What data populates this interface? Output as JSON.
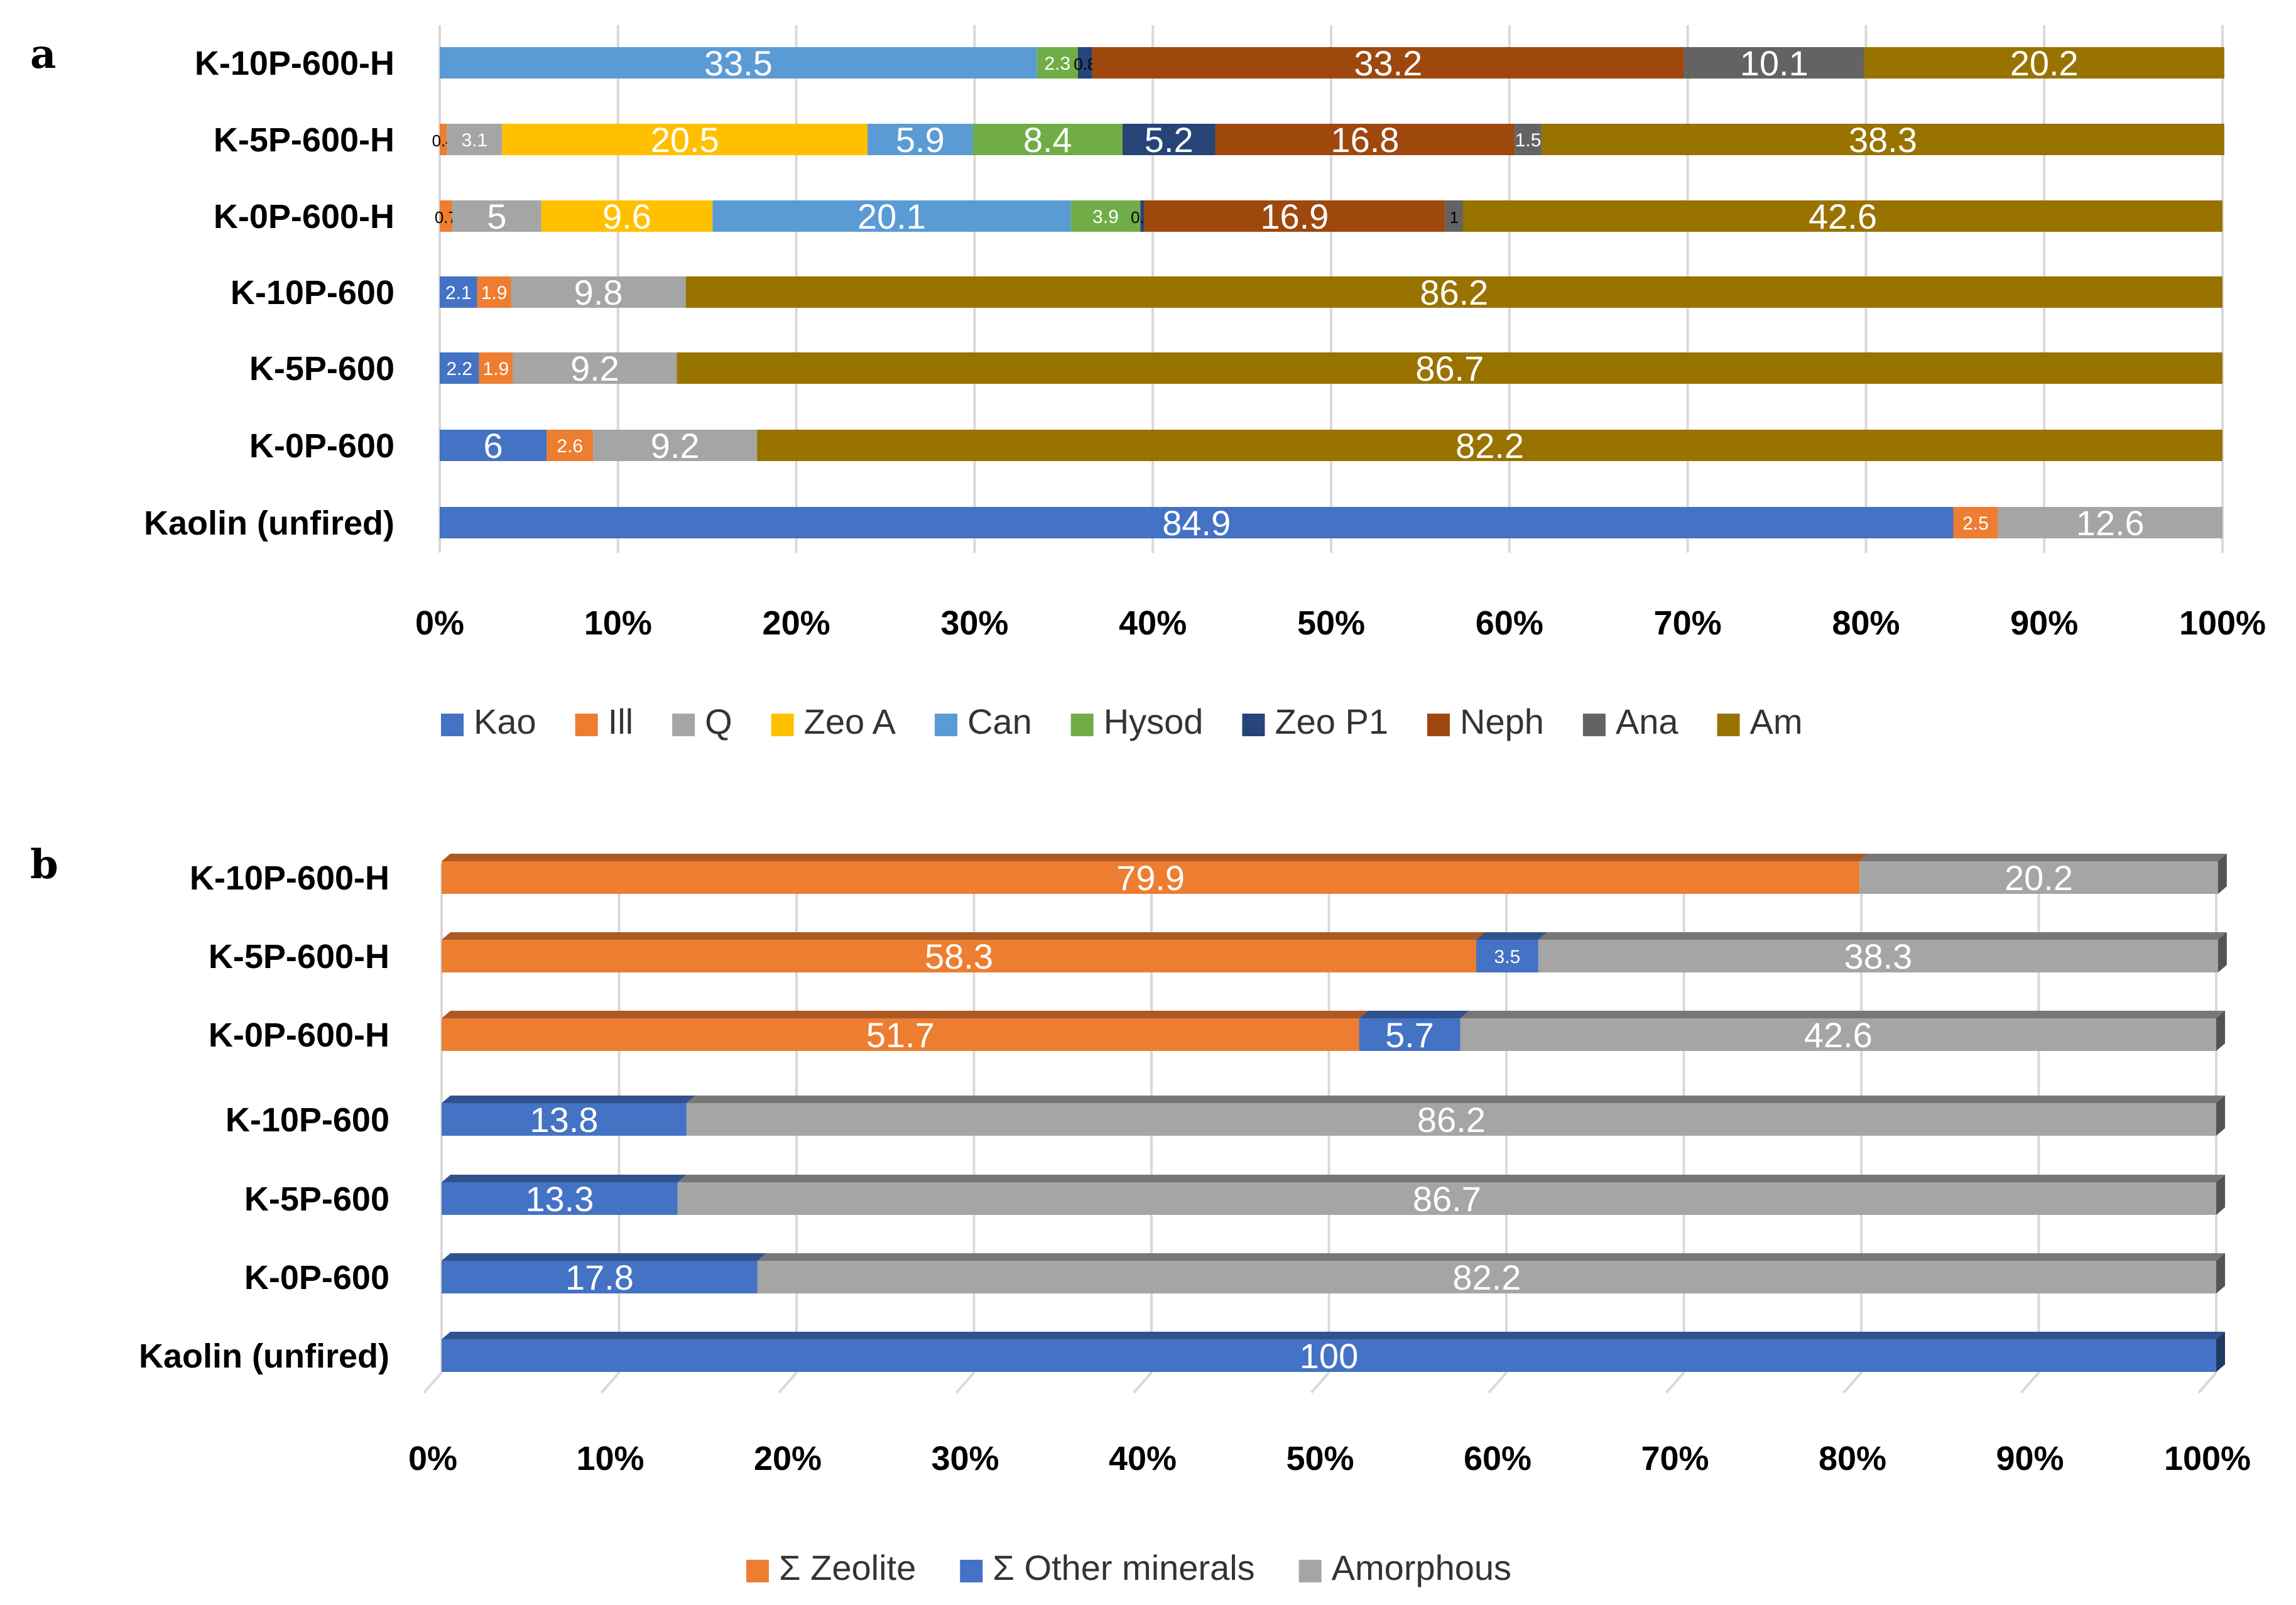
{
  "figure": {
    "panel_a_letter": "a",
    "panel_b_letter": "b"
  },
  "chart_data": [
    {
      "type": "bar",
      "orientation": "horizontal",
      "stacked": "percent",
      "panel": "a",
      "categories": [
        "K-10P-600-H",
        "K-5P-600-H",
        "K-0P-600-H",
        "K-10P-600",
        "K-5P-600",
        "K-0P-600",
        "Kaolin (unfired)"
      ],
      "xlim": [
        0,
        100
      ],
      "x_ticks": [
        "0%",
        "10%",
        "20%",
        "30%",
        "40%",
        "50%",
        "60%",
        "70%",
        "80%",
        "90%",
        "100%"
      ],
      "legend_position": "bottom",
      "series": [
        {
          "name": "Kao",
          "color": "#4472c4",
          "values": [
            0,
            0,
            0,
            2.1,
            2.2,
            6,
            84.9
          ]
        },
        {
          "name": "Ill",
          "color": "#ed7d31",
          "values": [
            0,
            0.4,
            0.7,
            1.9,
            1.9,
            2.6,
            2.5
          ]
        },
        {
          "name": "Q",
          "color": "#a5a5a5",
          "values": [
            0,
            3.1,
            5,
            9.8,
            9.2,
            9.2,
            12.6
          ]
        },
        {
          "name": "Zeo A",
          "color": "#ffc000",
          "values": [
            0,
            20.5,
            9.6,
            0,
            0,
            0,
            0
          ]
        },
        {
          "name": "Can",
          "color": "#5b9bd5",
          "values": [
            33.5,
            5.9,
            20.1,
            0,
            0,
            0,
            0
          ]
        },
        {
          "name": "Hysod",
          "color": "#70ad47",
          "values": [
            2.3,
            8.4,
            3.9,
            0,
            0,
            0,
            0
          ]
        },
        {
          "name": "Zeo P1",
          "color": "#264478",
          "values": [
            0.8,
            5.2,
            0.2,
            0,
            0,
            0,
            0
          ]
        },
        {
          "name": "Neph",
          "color": "#9e480e",
          "values": [
            33.2,
            16.8,
            16.9,
            0,
            0,
            0,
            0
          ]
        },
        {
          "name": "Ana",
          "color": "#636363",
          "values": [
            10.1,
            1.5,
            1,
            0,
            0,
            0,
            0
          ]
        },
        {
          "name": "Am",
          "color": "#997300",
          "values": [
            20.2,
            38.3,
            42.6,
            86.2,
            86.7,
            82.2,
            0
          ]
        }
      ]
    },
    {
      "type": "bar",
      "orientation": "horizontal",
      "stacked": "percent",
      "panel": "b",
      "style": "3d",
      "categories": [
        "K-10P-600-H",
        "K-5P-600-H",
        "K-0P-600-H",
        "K-10P-600",
        "K-5P-600",
        "K-0P-600",
        "Kaolin (unfired)"
      ],
      "xlim": [
        0,
        100
      ],
      "x_ticks": [
        "0%",
        "10%",
        "20%",
        "30%",
        "40%",
        "50%",
        "60%",
        "70%",
        "80%",
        "90%",
        "100%"
      ],
      "legend_position": "bottom",
      "series": [
        {
          "name": "Σ Zeolite",
          "color": "#ed7d31",
          "values": [
            79.9,
            58.3,
            51.7,
            0,
            0,
            0,
            0
          ]
        },
        {
          "name": "Σ Other minerals",
          "color": "#4472c4",
          "values": [
            0,
            3.5,
            5.7,
            13.8,
            13.3,
            17.8,
            100
          ]
        },
        {
          "name": "Amorphous",
          "color": "#a5a5a5",
          "values": [
            20.2,
            38.3,
            42.6,
            86.2,
            86.7,
            82.2,
            0
          ]
        }
      ]
    }
  ]
}
